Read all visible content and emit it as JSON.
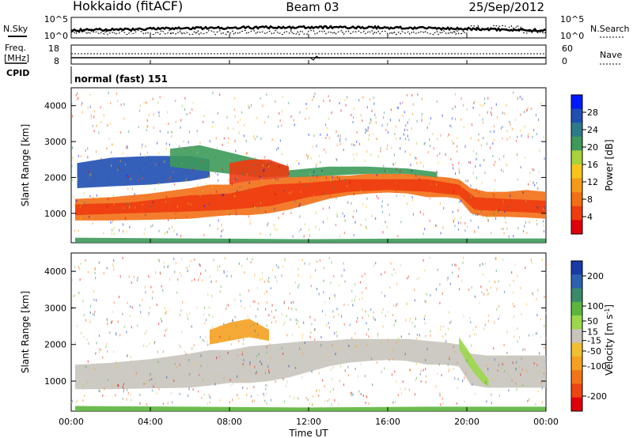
{
  "header": {
    "station": "Hokkaido (fitACF)",
    "beam": "Beam 03",
    "date": "25/Sep/2012"
  },
  "panels": {
    "nsky_label": "N.Sky",
    "nsearch_label": "N.Search",
    "freq_label_line1": "Freq.",
    "freq_label_line2": "[MHz]",
    "nave_label": "Nave",
    "cpid_label": "CPID",
    "cpid_text": "normal (fast) 151",
    "nsky_ticks": [
      "10^5",
      "10^0"
    ],
    "nsearch_ticks": [
      "10^5",
      "10^0"
    ],
    "freq_ticks": [
      "18",
      "8"
    ],
    "nave_ticks": [
      "60",
      "0"
    ]
  },
  "chart_data": [
    {
      "type": "heatmap",
      "title": "",
      "xlabel": "",
      "ylabel": "Slant Range [km]",
      "x_ticks": [
        "00:00",
        "04:00",
        "08:00",
        "12:00",
        "16:00",
        "20:00",
        "00:00"
      ],
      "y_ticks": [
        1000,
        2000,
        3000,
        4000
      ],
      "ylim": [
        180,
        4500
      ],
      "colorbar_label": "Power [dB]",
      "colorbar_ticks": [
        4,
        8,
        12,
        16,
        20,
        24,
        28
      ],
      "colorbar_colors": [
        "#0018ff",
        "#1f4fb3",
        "#2d7a8a",
        "#3d9a5a",
        "#a8d23c",
        "#f7c51c",
        "#f59a18",
        "#f26f15",
        "#ee3b10",
        "#e0000a"
      ],
      "colorbar_range": [
        0,
        32
      ],
      "bands": [
        {
          "x": [
            0.2,
            2,
            4,
            6,
            7,
            8,
            9,
            10,
            11,
            12,
            13,
            14,
            15,
            16,
            17,
            18,
            19,
            19.6,
            20.2,
            21,
            22,
            23,
            24
          ],
          "lo": [
            800,
            800,
            820,
            850,
            900,
            950,
            950,
            1000,
            1100,
            1250,
            1400,
            1500,
            1550,
            1580,
            1550,
            1450,
            1450,
            1400,
            1000,
            900,
            900,
            880,
            850
          ],
          "hi": [
            1400,
            1450,
            1550,
            1700,
            1800,
            1800,
            1900,
            1950,
            2000,
            2050,
            2050,
            2050,
            2100,
            2100,
            2100,
            2050,
            2000,
            1950,
            1700,
            1600,
            1600,
            1650,
            1600
          ],
          "color": "#f26f15"
        },
        {
          "x": [
            0.2,
            3,
            6,
            8,
            10,
            12,
            14,
            16,
            18,
            19.6,
            20.4,
            22,
            24
          ],
          "lo": [
            950,
            1000,
            1050,
            1100,
            1200,
            1450,
            1600,
            1650,
            1600,
            1500,
            1100,
            1050,
            1000
          ],
          "hi": [
            1250,
            1300,
            1500,
            1550,
            1800,
            1850,
            1950,
            1950,
            1950,
            1800,
            1450,
            1400,
            1350
          ],
          "color": "#ee3b10"
        },
        {
          "x": [
            0.3,
            2,
            4,
            6,
            7
          ],
          "lo": [
            1700,
            1750,
            1800,
            1900,
            2000
          ],
          "hi": [
            2400,
            2550,
            2600,
            2600,
            2500
          ],
          "color": "#1f4fb3"
        },
        {
          "x": [
            5,
            6.5,
            8,
            9.5,
            11
          ],
          "lo": [
            2300,
            2200,
            2100,
            2000,
            2050
          ],
          "hi": [
            2800,
            2900,
            2700,
            2500,
            2300
          ],
          "color": "#3d9a5a"
        },
        {
          "x": [
            8,
            9,
            10,
            11
          ],
          "lo": [
            1800,
            1900,
            1950,
            2000
          ],
          "hi": [
            2400,
            2500,
            2500,
            2300
          ],
          "color": "#ee3b10"
        },
        {
          "x": [
            11,
            13,
            15,
            17,
            18.5
          ],
          "lo": [
            2000,
            2050,
            2100,
            2100,
            2000
          ],
          "hi": [
            2200,
            2300,
            2300,
            2250,
            2150
          ],
          "color": "#3d9a5a"
        },
        {
          "x": [
            0.2,
            6,
            12,
            18,
            24
          ],
          "lo": [
            180,
            180,
            180,
            180,
            180
          ],
          "hi": [
            320,
            300,
            280,
            300,
            300
          ],
          "color": "#3d9a5a"
        }
      ]
    },
    {
      "type": "heatmap",
      "title": "",
      "xlabel": "Time UT",
      "ylabel": "Slant Range [km]",
      "x_ticks": [
        "00:00",
        "04:00",
        "08:00",
        "12:00",
        "16:00",
        "20:00",
        "00:00"
      ],
      "y_ticks": [
        1000,
        2000,
        3000,
        4000
      ],
      "ylim": [
        180,
        4500
      ],
      "colorbar_label": "Velocity [m s^-1]",
      "colorbar_ticks": [
        200,
        100,
        50,
        15,
        -15,
        -50,
        -100,
        -200
      ],
      "colorbar_colors": [
        "#1a3aa8",
        "#2b62b0",
        "#3a8a6a",
        "#5cb63c",
        "#9bd84a",
        "#c8c4bc",
        "#f0c030",
        "#f5a020",
        "#f27418",
        "#ee4412",
        "#e0000a"
      ],
      "colorbar_range": [
        -250,
        250
      ],
      "bands": [
        {
          "x": [
            0.2,
            2,
            4,
            6,
            7,
            8,
            9,
            10,
            11,
            12,
            13,
            14,
            15,
            16,
            17,
            18,
            19,
            19.6,
            20.2,
            21,
            22,
            23,
            24
          ],
          "lo": [
            780,
            780,
            800,
            820,
            880,
            950,
            950,
            1000,
            1100,
            1250,
            1400,
            1500,
            1550,
            1580,
            1550,
            1450,
            1450,
            1400,
            900,
            820,
            820,
            820,
            820
          ],
          "hi": [
            1450,
            1500,
            1600,
            1750,
            1850,
            1850,
            1950,
            2000,
            2050,
            2100,
            2100,
            2150,
            2150,
            2150,
            2150,
            2100,
            2050,
            2000,
            1750,
            1700,
            1700,
            1700,
            1700
          ],
          "color": "#c8c4bc"
        },
        {
          "x": [
            19.6,
            20,
            20.4,
            20.8,
            21.1
          ],
          "lo": [
            1900,
            1500,
            1200,
            950,
            850
          ],
          "hi": [
            2200,
            1900,
            1550,
            1250,
            1050
          ],
          "color": "#9bd84a"
        },
        {
          "x": [
            7,
            8,
            9,
            10
          ],
          "lo": [
            2000,
            2100,
            2200,
            2100
          ],
          "hi": [
            2400,
            2600,
            2700,
            2400
          ],
          "color": "#f5a020"
        },
        {
          "x": [
            0.2,
            6,
            12,
            18,
            24
          ],
          "lo": [
            180,
            180,
            180,
            180,
            180
          ],
          "hi": [
            320,
            300,
            280,
            300,
            300
          ],
          "color": "#5cb63c"
        }
      ]
    }
  ]
}
